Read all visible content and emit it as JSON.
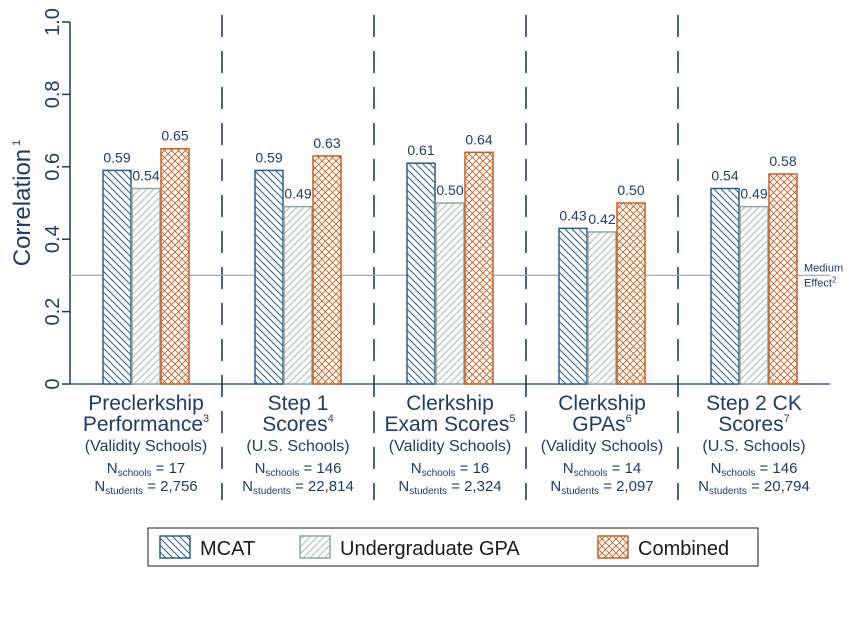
{
  "chart_data": {
    "type": "bar",
    "ylabel": "Correlation",
    "ylabel_sup": "1",
    "ylim": [
      0,
      1.0
    ],
    "yticks": [
      "0",
      "0.2",
      "0.4",
      "0.6",
      "0.8",
      "1.0"
    ],
    "grid": false,
    "legend_position": "bottom",
    "groups": [
      {
        "title": [
          "Preclerkship",
          "Performance"
        ],
        "sup": "3",
        "subtitle": "(Validity Schools)",
        "n_schools": "17",
        "n_students": "2,756"
      },
      {
        "title": [
          "Step 1",
          "Scores"
        ],
        "sup": "4",
        "subtitle": "(U.S. Schools)",
        "n_schools": "146",
        "n_students": "22,814"
      },
      {
        "title": [
          "Clerkship",
          "Exam Scores"
        ],
        "sup": "5",
        "subtitle": "(Validity Schools)",
        "n_schools": "16",
        "n_students": "2,324"
      },
      {
        "title": [
          "Clerkship",
          "GPAs"
        ],
        "sup": "6",
        "subtitle": "(Validity Schools)",
        "n_schools": "14",
        "n_students": "2,097"
      },
      {
        "title": [
          "Step 2 CK",
          "Scores"
        ],
        "sup": "7",
        "subtitle": "(U.S. Schools)",
        "n_schools": "146",
        "n_students": "20,794"
      }
    ],
    "series": [
      {
        "name": "MCAT",
        "color": "#2e5d8e",
        "pattern": "diagonal",
        "values": [
          0.59,
          0.59,
          0.61,
          0.43,
          0.54
        ],
        "labels": [
          "0.59",
          "0.59",
          "0.61",
          "0.43",
          "0.54"
        ]
      },
      {
        "name": "Undergraduate GPA",
        "color": "#8ea5a0",
        "pattern": "diagonal-light",
        "values": [
          0.54,
          0.49,
          0.5,
          0.42,
          0.49
        ],
        "labels": [
          "0.54",
          "0.49",
          "0.50",
          "0.42",
          "0.49"
        ]
      },
      {
        "name": "Combined",
        "color": "#c8611f",
        "pattern": "crosshatch",
        "values": [
          0.65,
          0.63,
          0.64,
          0.5,
          0.58
        ],
        "labels": [
          "0.65",
          "0.63",
          "0.64",
          "0.50",
          "0.58"
        ]
      }
    ],
    "reference_line": {
      "value": 0.3,
      "label": [
        "Medium",
        "Effect"
      ],
      "label_sup": "2"
    },
    "n_prefix": "N",
    "n_schools_sub": "schools",
    "n_students_sub": "students"
  }
}
